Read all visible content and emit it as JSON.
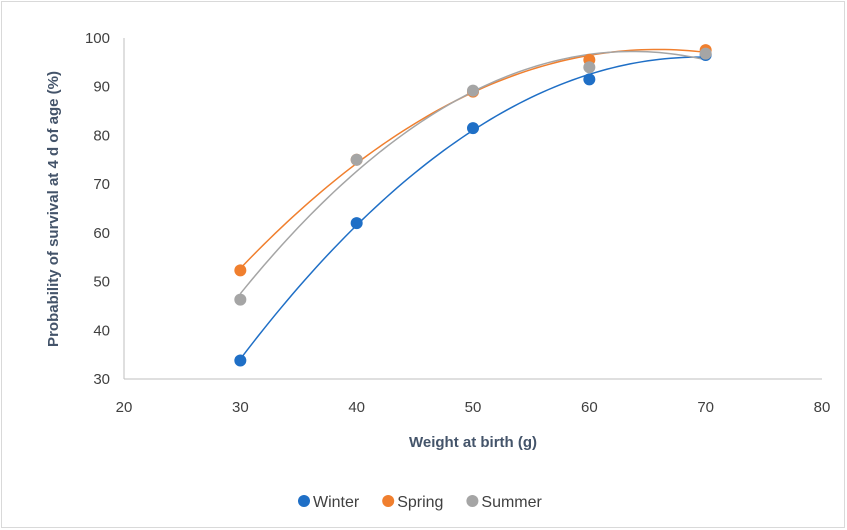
{
  "chart_data": {
    "type": "scatter",
    "xlabel": "Weight  at birth (g)",
    "ylabel": "Probability of survival at 4 d of age (%)",
    "xlim": [
      20,
      80
    ],
    "ylim": [
      30,
      100
    ],
    "x_ticks": [
      20,
      30,
      40,
      50,
      60,
      70,
      80
    ],
    "y_ticks": [
      30,
      40,
      50,
      60,
      70,
      80,
      90,
      100
    ],
    "grid": false,
    "legend_position": "bottom",
    "trendline": "polynomial order 2",
    "series": [
      {
        "name": "Winter",
        "color": "#1F6FC6",
        "points": [
          [
            30,
            33.8
          ],
          [
            40,
            62.0
          ],
          [
            50,
            81.5
          ],
          [
            60,
            91.5
          ],
          [
            70,
            96.5
          ]
        ]
      },
      {
        "name": "Spring",
        "color": "#F07F2E",
        "points": [
          [
            30,
            52.3
          ],
          [
            40,
            75.0
          ],
          [
            50,
            89.0
          ],
          [
            60,
            95.5
          ],
          [
            70,
            97.5
          ]
        ]
      },
      {
        "name": "Summer",
        "color": "#A5A5A5",
        "points": [
          [
            30,
            46.3
          ],
          [
            40,
            75.0
          ],
          [
            50,
            89.2
          ],
          [
            60,
            94.0
          ],
          [
            70,
            96.8
          ]
        ]
      }
    ]
  }
}
